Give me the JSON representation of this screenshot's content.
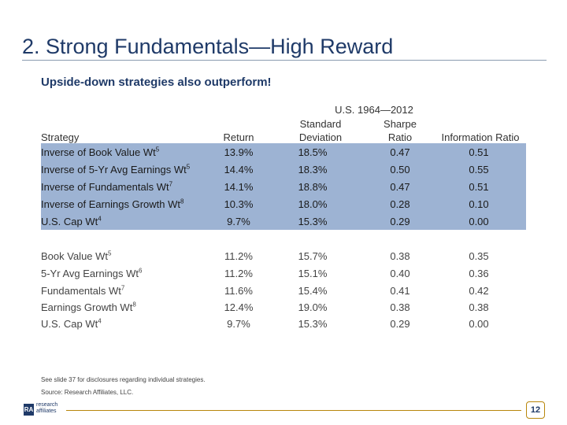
{
  "title": "2. Strong Fundamentals—High Reward",
  "subtitle": "Upside-down strategies also outperform!",
  "table": {
    "period": "U.S. 1964—2012",
    "headers": {
      "strategy": "Strategy",
      "return": "Return",
      "std_line1": "Standard",
      "std_line2": "Deviation",
      "sharpe_line1": "Sharpe",
      "sharpe_line2": "Ratio",
      "info": "Information Ratio"
    },
    "shaded_rows": [
      {
        "name": "Inverse of Book Value Wt",
        "sup": "5",
        "return": "13.9%",
        "std": "18.5%",
        "sharpe": "0.47",
        "info": "0.51"
      },
      {
        "name": "Inverse of 5-Yr Avg Earnings Wt",
        "sup": "5",
        "return": "14.4%",
        "std": "18.3%",
        "sharpe": "0.50",
        "info": "0.55"
      },
      {
        "name": "Inverse of Fundamentals Wt",
        "sup": "7",
        "return": "14.1%",
        "std": "18.8%",
        "sharpe": "0.47",
        "info": "0.51"
      },
      {
        "name": "Inverse of Earnings Growth Wt",
        "sup": "8",
        "return": "10.3%",
        "std": "18.0%",
        "sharpe": "0.28",
        "info": "0.10"
      },
      {
        "name": "U.S. Cap Wt",
        "sup": "4",
        "return": "9.7%",
        "std": "15.3%",
        "sharpe": "0.29",
        "info": "0.00"
      }
    ],
    "plain_rows": [
      {
        "name": "Book Value Wt",
        "sup": "5",
        "return": "11.2%",
        "std": "15.7%",
        "sharpe": "0.38",
        "info": "0.35"
      },
      {
        "name": "5-Yr Avg Earnings Wt",
        "sup": "6",
        "return": "11.2%",
        "std": "15.1%",
        "sharpe": "0.40",
        "info": "0.36"
      },
      {
        "name": "Fundamentals Wt",
        "sup": "7",
        "return": "11.6%",
        "std": "15.4%",
        "sharpe": "0.41",
        "info": "0.42"
      },
      {
        "name": "Earnings Growth Wt",
        "sup": "8",
        "return": "12.4%",
        "std": "19.0%",
        "sharpe": "0.38",
        "info": "0.38"
      },
      {
        "name": "U.S. Cap Wt",
        "sup": "4",
        "return": "9.7%",
        "std": "15.3%",
        "sharpe": "0.29",
        "info": "0.00"
      }
    ]
  },
  "footnotes": {
    "disclosure": "See slide 37 for disclosures regarding individual strategies.",
    "source": "Source: Research Affiliates, LLC."
  },
  "logo": {
    "mark": "RA",
    "line1": "research",
    "line2": "affiliates"
  },
  "page_number": "12"
}
